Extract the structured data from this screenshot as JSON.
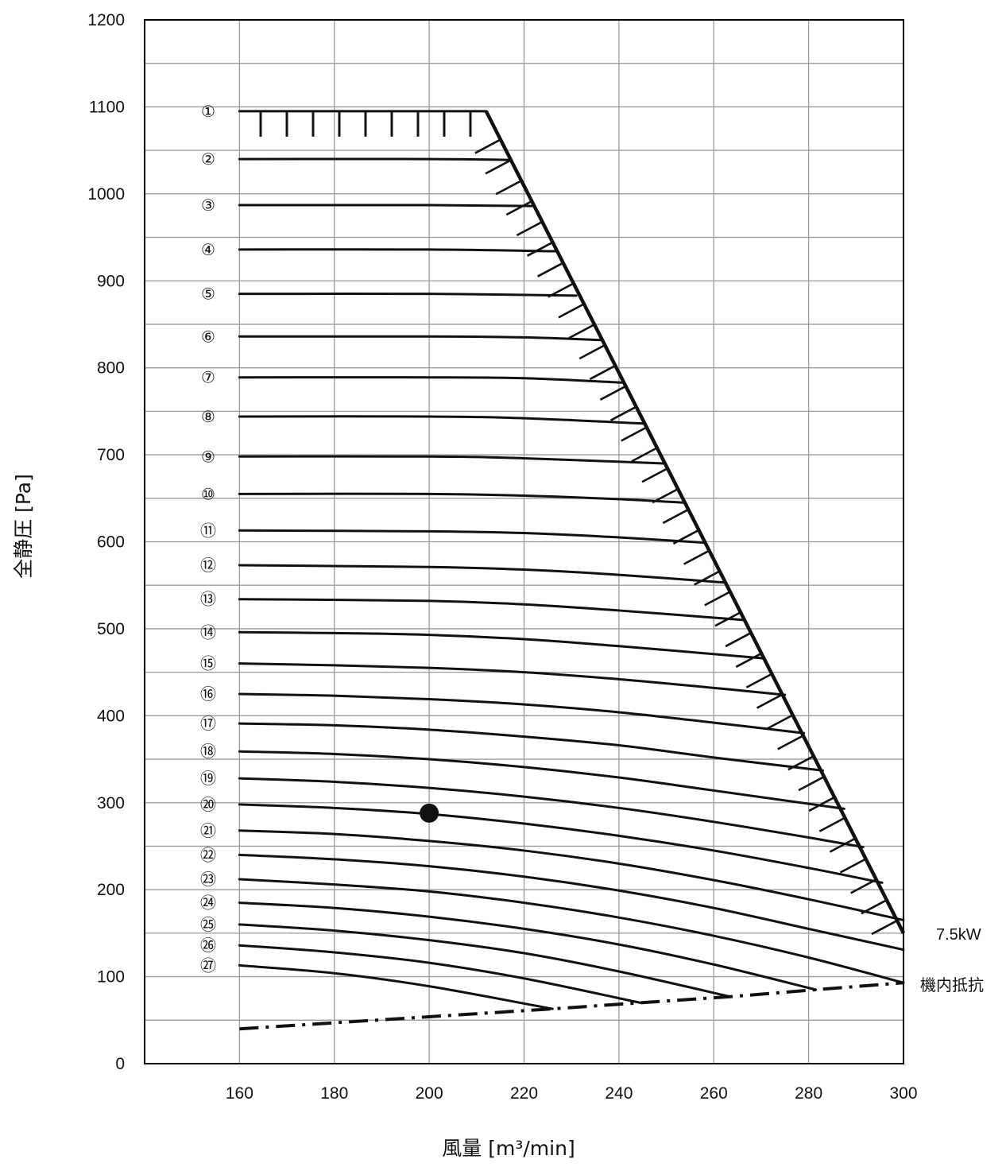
{
  "chart_data": {
    "type": "line",
    "xlabel": "風量 [m³/min]",
    "ylabel": "全静圧 [Pa]",
    "xlim": [
      140,
      300
    ],
    "ylim": [
      0,
      1200
    ],
    "x_ticks": [
      160,
      180,
      200,
      220,
      240,
      260,
      280,
      300
    ],
    "y_ticks": [
      0,
      100,
      200,
      300,
      400,
      500,
      600,
      700,
      800,
      900,
      1000,
      1100,
      1200
    ],
    "grid": true,
    "series": [
      {
        "name": "①",
        "x": [
          160,
          212
        ],
        "y": [
          1095,
          1095
        ]
      },
      {
        "name": "②",
        "x": [
          160,
          200,
          217
        ],
        "y": [
          1040,
          1040,
          1039
        ]
      },
      {
        "name": "③",
        "x": [
          160,
          200,
          222
        ],
        "y": [
          987,
          987,
          986
        ]
      },
      {
        "name": "④",
        "x": [
          160,
          200,
          226.5
        ],
        "y": [
          936,
          936,
          934
        ]
      },
      {
        "name": "⑤",
        "x": [
          160,
          200,
          231
        ],
        "y": [
          885,
          885,
          883
        ]
      },
      {
        "name": "⑥",
        "x": [
          160,
          200,
          220,
          236
        ],
        "y": [
          836,
          836,
          835,
          832
        ]
      },
      {
        "name": "⑦",
        "x": [
          160,
          200,
          220,
          240.5
        ],
        "y": [
          789,
          789,
          788,
          783
        ]
      },
      {
        "name": "⑧",
        "x": [
          160,
          200,
          220,
          245
        ],
        "y": [
          744,
          744,
          742,
          736
        ]
      },
      {
        "name": "⑨",
        "x": [
          160,
          200,
          220,
          249.5
        ],
        "y": [
          698,
          698,
          696,
          690
        ]
      },
      {
        "name": "⑩",
        "x": [
          160,
          200,
          220,
          240,
          253.5
        ],
        "y": [
          655,
          655,
          653,
          649,
          645
        ]
      },
      {
        "name": "⑪",
        "x": [
          160,
          200,
          220,
          240,
          258
        ],
        "y": [
          613,
          612,
          610,
          605,
          599
        ]
      },
      {
        "name": "⑫",
        "x": [
          160,
          200,
          220,
          240,
          262.5
        ],
        "y": [
          573,
          571,
          568,
          562,
          553
        ]
      },
      {
        "name": "⑬",
        "x": [
          160,
          200,
          220,
          240,
          266.5
        ],
        "y": [
          534,
          532,
          528,
          521,
          510
        ]
      },
      {
        "name": "⑭",
        "x": [
          160,
          180,
          200,
          220,
          240,
          270.5
        ],
        "y": [
          496,
          495,
          493,
          488,
          480,
          466
        ]
      },
      {
        "name": "⑮",
        "x": [
          160,
          180,
          200,
          220,
          240,
          260,
          275
        ],
        "y": [
          460,
          458,
          455,
          450,
          442,
          432,
          424
        ]
      },
      {
        "name": "⑯",
        "x": [
          160,
          180,
          200,
          220,
          240,
          260,
          279
        ],
        "y": [
          425,
          423,
          419,
          413,
          404,
          392,
          380
        ]
      },
      {
        "name": "⑰",
        "x": [
          160,
          180,
          200,
          220,
          240,
          260,
          283
        ],
        "y": [
          391,
          389,
          384,
          376,
          366,
          352,
          337
        ]
      },
      {
        "name": "⑱",
        "x": [
          160,
          180,
          200,
          220,
          240,
          260,
          287.5
        ],
        "y": [
          359,
          356,
          350,
          341,
          329,
          314,
          293
        ]
      },
      {
        "name": "⑲",
        "x": [
          160,
          180,
          200,
          220,
          240,
          260,
          280,
          291.5
        ],
        "y": [
          328,
          324,
          317,
          307,
          294,
          278,
          260,
          249
        ]
      },
      {
        "name": "⑳",
        "x": [
          160,
          180,
          200,
          220,
          240,
          260,
          280,
          295.5
        ],
        "y": [
          298,
          294,
          287,
          276,
          262,
          245,
          225,
          208
        ]
      },
      {
        "name": "㉑",
        "x": [
          160,
          180,
          200,
          220,
          240,
          260,
          280,
          300
        ],
        "y": [
          268,
          264,
          256,
          245,
          230,
          211,
          189,
          165
        ]
      },
      {
        "name": "㉒",
        "x": [
          160,
          180,
          200,
          220,
          240,
          260,
          280,
          300
        ],
        "y": [
          240,
          235,
          227,
          215,
          199,
          179,
          155,
          131
        ]
      },
      {
        "name": "㉓",
        "x": [
          160,
          180,
          200,
          220,
          240,
          260,
          280,
          300
        ],
        "y": [
          212,
          206,
          198,
          185,
          168,
          147,
          122,
          93
        ]
      },
      {
        "name": "㉔",
        "x": [
          160,
          180,
          200,
          220,
          240,
          260,
          281.5
        ],
        "y": [
          185,
          179,
          169,
          155,
          137,
          114,
          85
        ]
      },
      {
        "name": "㉕",
        "x": [
          160,
          180,
          200,
          220,
          240,
          263.5
        ],
        "y": [
          160,
          153,
          142,
          127,
          106,
          77
        ]
      },
      {
        "name": "㉖",
        "x": [
          160,
          180,
          200,
          220,
          244.5
        ],
        "y": [
          136,
          128,
          116,
          98,
          70
        ]
      },
      {
        "name": "㉗",
        "x": [
          160,
          180,
          200,
          226
        ],
        "y": [
          113,
          104,
          89,
          63
        ]
      }
    ],
    "limit_line": {
      "name": "7.5kW",
      "x": [
        212,
        300
      ],
      "y": [
        1095,
        150
      ]
    },
    "resistance_line": {
      "name": "機内抵抗",
      "x": [
        160,
        226,
        244.5,
        263.5,
        281.5,
        300
      ],
      "y": [
        40,
        63,
        70,
        77,
        85,
        93
      ]
    },
    "operating_point": {
      "x": 200,
      "y": 288
    }
  }
}
